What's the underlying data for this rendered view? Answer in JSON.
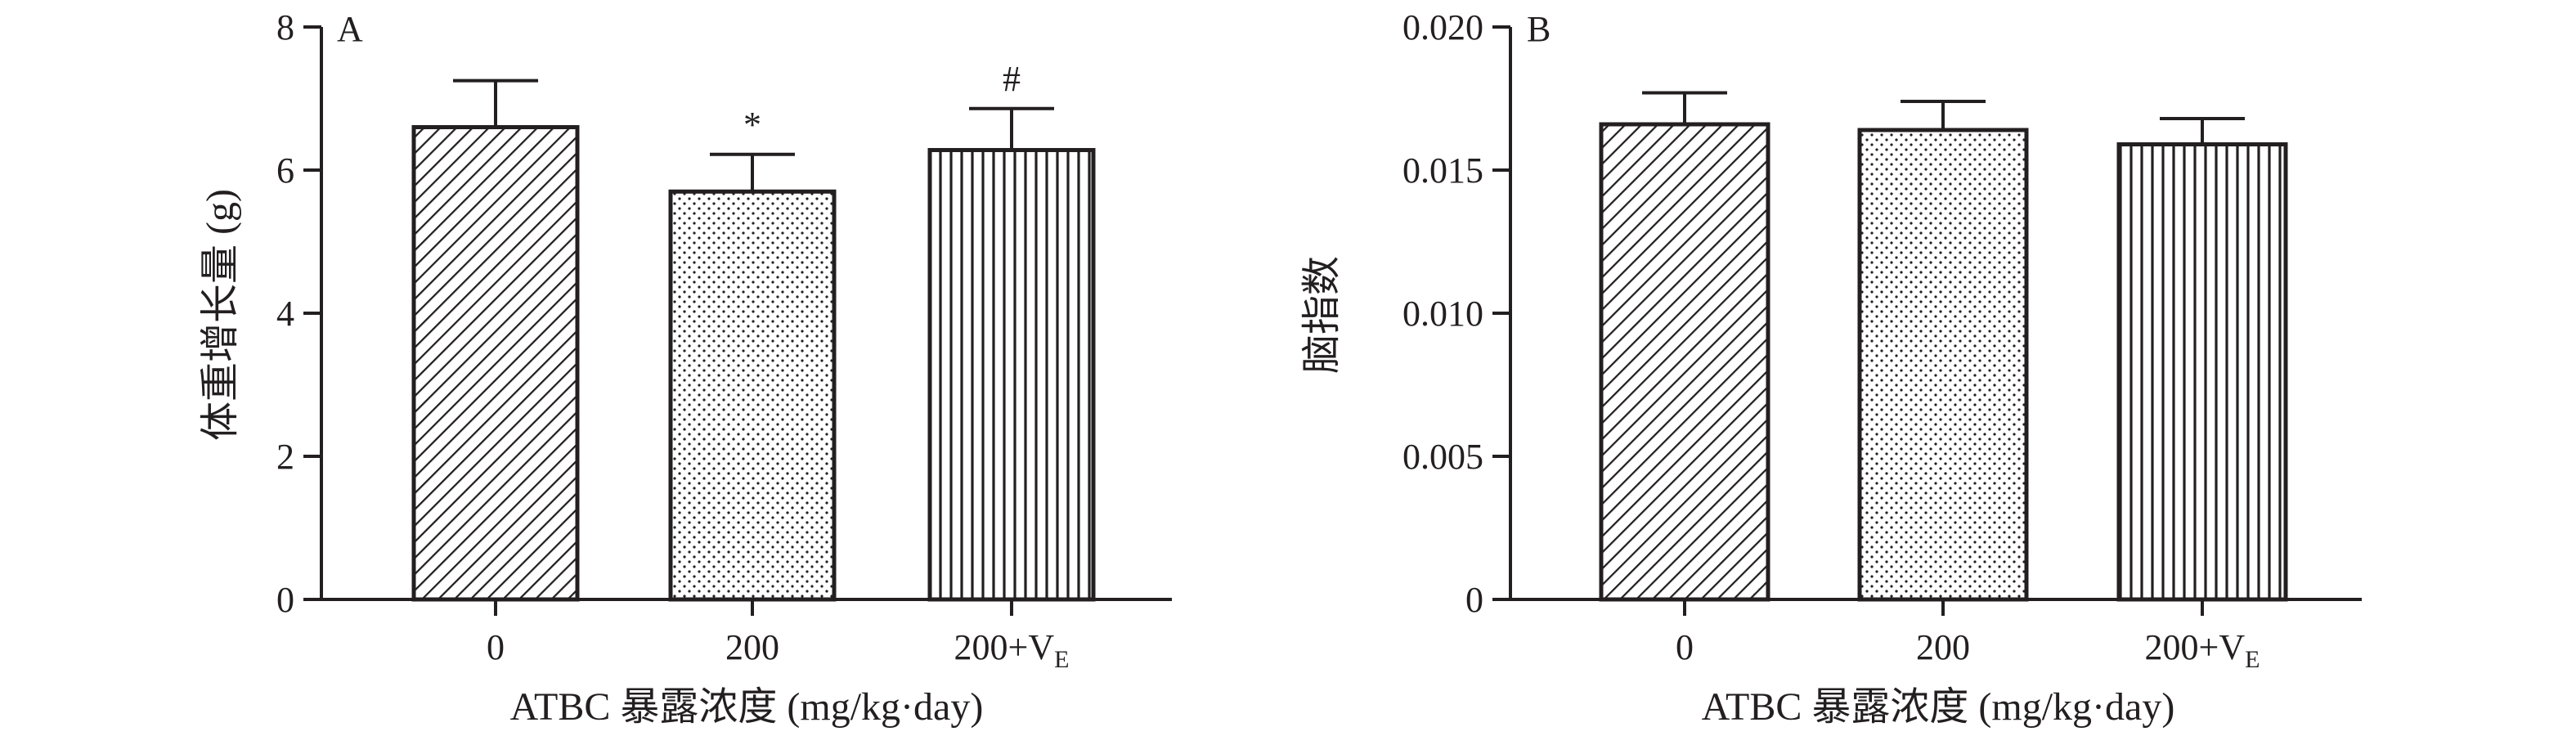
{
  "chart_data": [
    {
      "type": "bar",
      "panel_label": "A",
      "categories": [
        "0",
        "200",
        "200+V"
      ],
      "category_subscripts": [
        "",
        "",
        "E"
      ],
      "values": [
        6.6,
        5.7,
        6.28
      ],
      "errors": [
        0.65,
        0.52,
        0.58
      ],
      "significance": [
        "",
        "*",
        "#"
      ],
      "patterns": [
        "diagonal-hatch",
        "dots",
        "vertical-lines"
      ],
      "ylabel": "体重增长量 (g)",
      "xlabel": "ATBC 暴露浓度 (mg/kg·day)",
      "ylim": [
        0,
        8
      ],
      "yticks": [
        0,
        2,
        4,
        6,
        8
      ],
      "ytick_labels": [
        "0",
        "2",
        "4",
        "6",
        "8"
      ],
      "grid": false
    },
    {
      "type": "bar",
      "panel_label": "B",
      "categories": [
        "0",
        "200",
        "200+V"
      ],
      "category_subscripts": [
        "",
        "",
        "E"
      ],
      "values": [
        0.0166,
        0.0164,
        0.0159
      ],
      "errors": [
        0.0011,
        0.001,
        0.0009
      ],
      "significance": [
        "",
        "",
        ""
      ],
      "patterns": [
        "diagonal-hatch",
        "dots",
        "vertical-lines"
      ],
      "ylabel": "脑指数",
      "xlabel": "ATBC 暴露浓度 (mg/kg·day)",
      "ylim": [
        0,
        0.02
      ],
      "yticks": [
        0,
        0.005,
        0.01,
        0.015,
        0.02
      ],
      "ytick_labels": [
        "0",
        "0.005",
        "0.010",
        "0.015",
        "0.020"
      ],
      "grid": false
    }
  ],
  "colors": {
    "ink": "#231f20",
    "background": "#ffffff"
  }
}
